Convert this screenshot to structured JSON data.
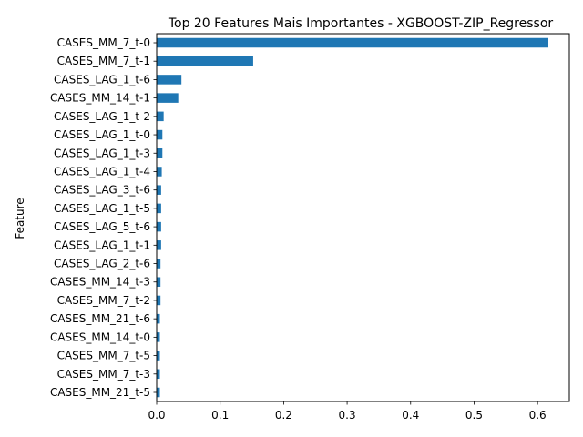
{
  "chart_data": {
    "type": "bar",
    "orientation": "horizontal",
    "title": "Top 20 Features Mais Importantes - XGBOOST-ZIP_Regressor",
    "xlabel": "",
    "ylabel": "Feature",
    "xlim": [
      0,
      0.65
    ],
    "xticks": [
      0.0,
      0.1,
      0.2,
      0.3,
      0.4,
      0.5,
      0.6
    ],
    "xtick_labels": [
      "0.0",
      "0.1",
      "0.2",
      "0.3",
      "0.4",
      "0.5",
      "0.6"
    ],
    "grid": false,
    "bar_color": "#1f77b4",
    "categories": [
      "CASES_MM_7_t-0",
      "CASES_MM_7_t-1",
      "CASES_LAG_1_t-6",
      "CASES_MM_14_t-1",
      "CASES_LAG_1_t-2",
      "CASES_LAG_1_t-0",
      "CASES_LAG_1_t-3",
      "CASES_LAG_1_t-4",
      "CASES_LAG_3_t-6",
      "CASES_LAG_1_t-5",
      "CASES_LAG_5_t-6",
      "CASES_LAG_1_t-1",
      "CASES_LAG_2_t-6",
      "CASES_MM_14_t-3",
      "CASES_MM_7_t-2",
      "CASES_MM_21_t-6",
      "CASES_MM_14_t-0",
      "CASES_MM_7_t-5",
      "CASES_MM_7_t-3",
      "CASES_MM_21_t-5"
    ],
    "values": [
      0.617,
      0.152,
      0.039,
      0.034,
      0.011,
      0.009,
      0.009,
      0.008,
      0.007,
      0.007,
      0.007,
      0.007,
      0.006,
      0.006,
      0.006,
      0.005,
      0.005,
      0.005,
      0.005,
      0.005
    ]
  }
}
